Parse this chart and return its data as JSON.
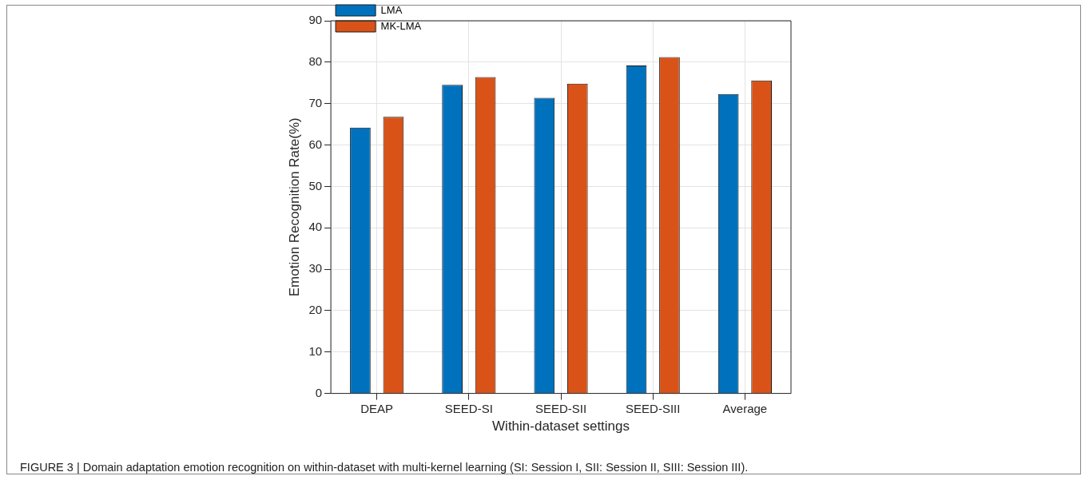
{
  "chart_data": {
    "type": "bar",
    "categories": [
      "DEAP",
      "SEED-SI",
      "SEED-SII",
      "SEED-SIII",
      "Average"
    ],
    "series": [
      {
        "name": "LMA",
        "color": "#0072bd",
        "values": [
          64.2,
          74.5,
          71.4,
          79.2,
          72.3
        ]
      },
      {
        "name": "MK-LMA",
        "color": "#d95319",
        "values": [
          66.8,
          76.4,
          74.8,
          81.2,
          75.6
        ]
      }
    ],
    "xlabel": "Within-dataset settings",
    "ylabel": "Emotion Recognition Rate(%)",
    "ylim": [
      0,
      90
    ],
    "yticks": [
      0,
      10,
      20,
      30,
      40,
      50,
      60,
      70,
      80,
      90
    ],
    "grid": true,
    "legend": "top left",
    "annotations": [
      "FIGURE 3 | Domain adaptation emotion recognition on within-dataset with multi-kernel learning (SI: Session I, SII: Session II, SIII: Session III)."
    ]
  }
}
